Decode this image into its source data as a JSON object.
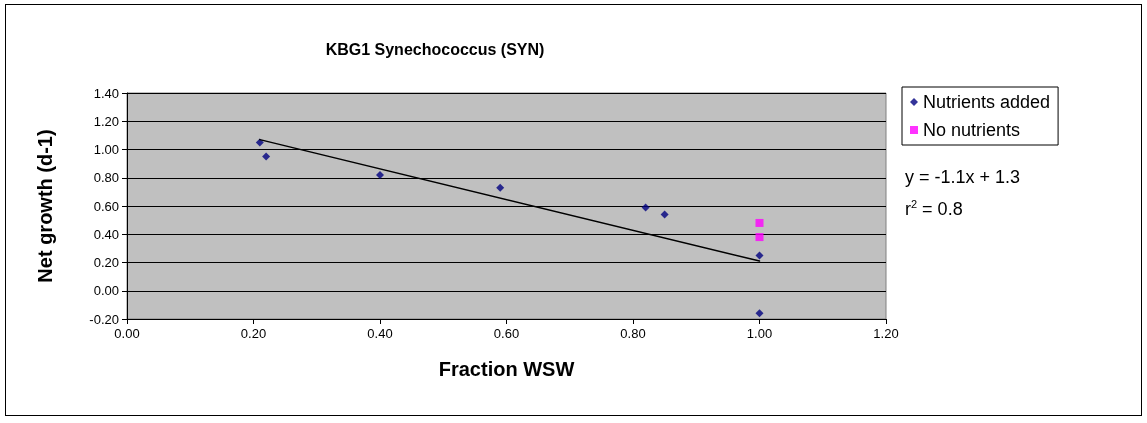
{
  "chart_data": {
    "type": "scatter",
    "title": "KBG1 Synechococcus (SYN)",
    "xlabel": "Fraction WSW",
    "ylabel": "Net growth (d-1)",
    "xlim": [
      0,
      1.2
    ],
    "xticks": [
      {
        "value": 0,
        "label": "0.00"
      },
      {
        "value": 0.2,
        "label": "0.20"
      },
      {
        "value": 0.4,
        "label": "0.40"
      },
      {
        "value": 0.6,
        "label": "0.60"
      },
      {
        "value": 0.8,
        "label": "0.80"
      },
      {
        "value": 1,
        "label": "1.00"
      },
      {
        "value": 1.2,
        "label": "1.20"
      }
    ],
    "ylim": [
      -0.2,
      1.4
    ],
    "yticks": [
      {
        "value": -0.2,
        "label": "-0.20"
      },
      {
        "value": 0,
        "label": "0.00"
      },
      {
        "value": 0.2,
        "label": "0.20"
      },
      {
        "value": 0.4,
        "label": "0.40"
      },
      {
        "value": 0.6,
        "label": "0.60"
      },
      {
        "value": 0.8,
        "label": "0.80"
      },
      {
        "value": 1,
        "label": "1.00"
      },
      {
        "value": 1.2,
        "label": "1.20"
      },
      {
        "value": 1.4,
        "label": "1.40"
      }
    ],
    "series": [
      {
        "name": "Nutrients added",
        "color": "#000080",
        "marker": "diamond",
        "x": [
          0.21,
          0.22,
          0.4,
          0.59,
          0.82,
          0.85,
          1.0,
          1.0
        ],
        "values": [
          1.05,
          0.95,
          0.82,
          0.73,
          0.59,
          0.54,
          0.25,
          -0.16
        ]
      },
      {
        "name": "No nutrients",
        "color": "#ff00ff",
        "marker": "square",
        "x": [
          1.0,
          1.0
        ],
        "values": [
          0.48,
          0.38
        ]
      },
      {
        "type": "line",
        "color": "#000000",
        "marker": "none",
        "x": [
          0.21,
          1.0
        ],
        "values": [
          1.07,
          0.21
        ]
      }
    ],
    "annotations": [
      "y = -1.1x + 1.3",
      "r$^{2}$ = 0.8"
    ],
    "grid": "y",
    "legend": "right"
  }
}
